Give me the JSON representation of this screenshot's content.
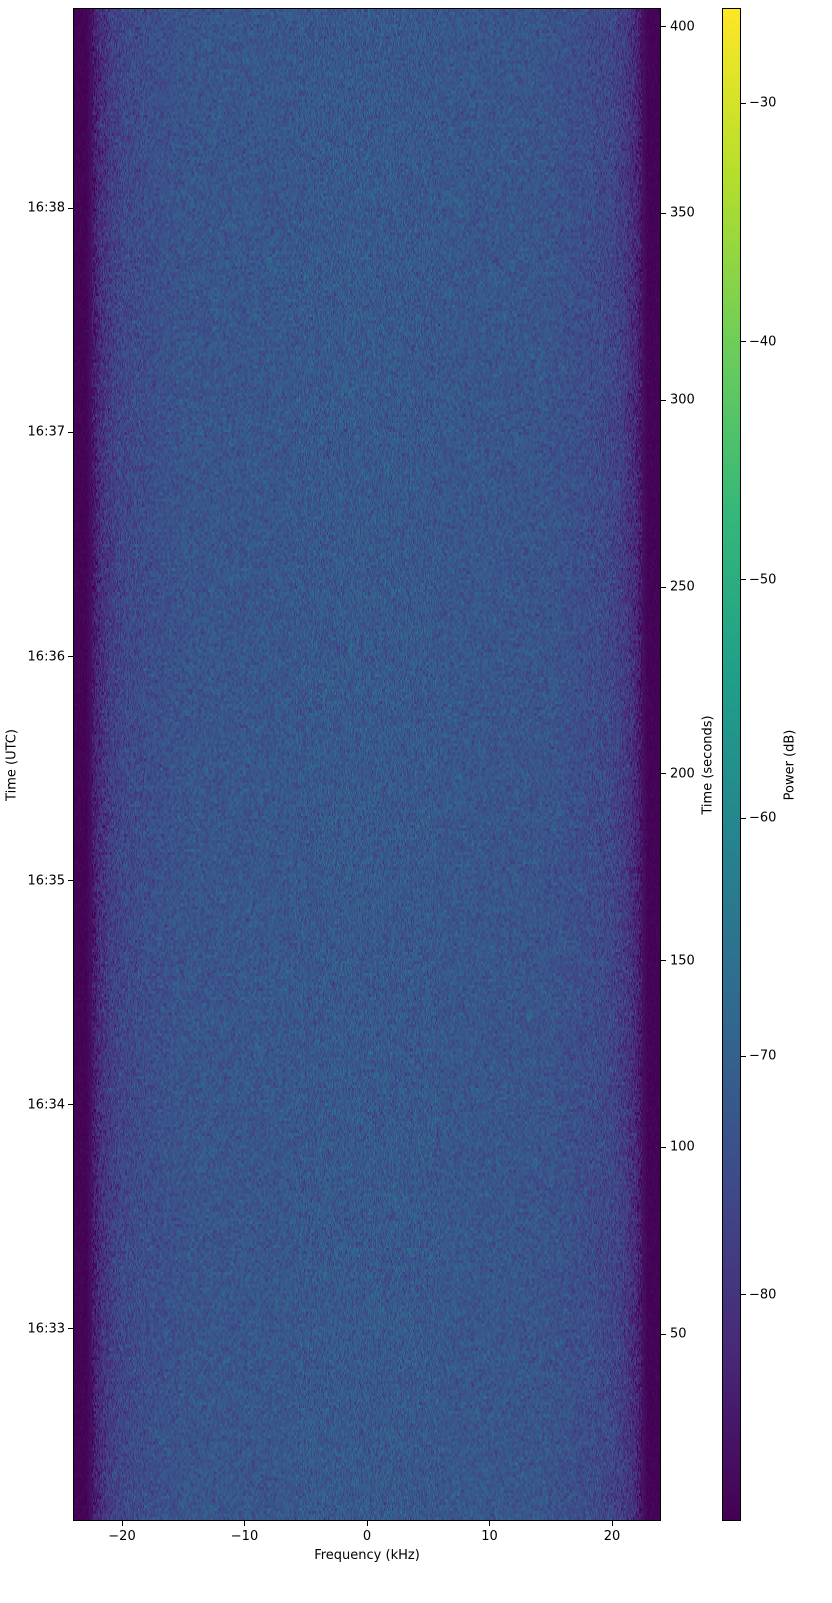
{
  "chart_data": {
    "type": "heatmap",
    "xlabel": "Frequency (kHz)",
    "ylabel_left": "Time (UTC)",
    "ylabel_right": "Time (seconds)",
    "colorbar_label": "Power (dB)",
    "colormap": "viridis",
    "xlim": [
      -24,
      24
    ],
    "ylim_seconds": [
      0,
      405
    ],
    "clim": [
      -89.5,
      -26
    ],
    "x_ticks": [
      -20,
      -10,
      0,
      10,
      20
    ],
    "x_tick_labels": [
      "−20",
      "−10",
      "0",
      "10",
      "20"
    ],
    "right_ticks": [
      50,
      100,
      150,
      200,
      250,
      300,
      350,
      400
    ],
    "left_ticks": [
      {
        "seconds": 51.4,
        "label": "16:33"
      },
      {
        "seconds": 111.4,
        "label": "16:34"
      },
      {
        "seconds": 171.4,
        "label": "16:35"
      },
      {
        "seconds": 231.4,
        "label": "16:36"
      },
      {
        "seconds": 291.4,
        "label": "16:37"
      },
      {
        "seconds": 351.4,
        "label": "16:38"
      }
    ],
    "colorbar_ticks": [
      -80,
      -70,
      -60,
      -50,
      -40,
      -30
    ],
    "colorbar_tick_labels": [
      "−80",
      "−70",
      "−60",
      "−50",
      "−40",
      "−30"
    ],
    "mean_power_profile": {
      "frequency_khz": [
        -24,
        -23,
        -22.5,
        -22,
        -21,
        -20,
        -18,
        -15,
        -10,
        0,
        10,
        15,
        18,
        20,
        21,
        22,
        22.5,
        23,
        24
      ],
      "power_db": [
        -89,
        -89,
        -86,
        -82,
        -78,
        -76,
        -74.5,
        -73,
        -72.5,
        -72,
        -72.5,
        -73,
        -74.5,
        -76,
        -78,
        -82,
        -86,
        -89,
        -89
      ]
    },
    "noise_std_db": 3,
    "colors": {
      "low": "#440154",
      "mid": "#3b528b",
      "high": "#fde725"
    }
  }
}
